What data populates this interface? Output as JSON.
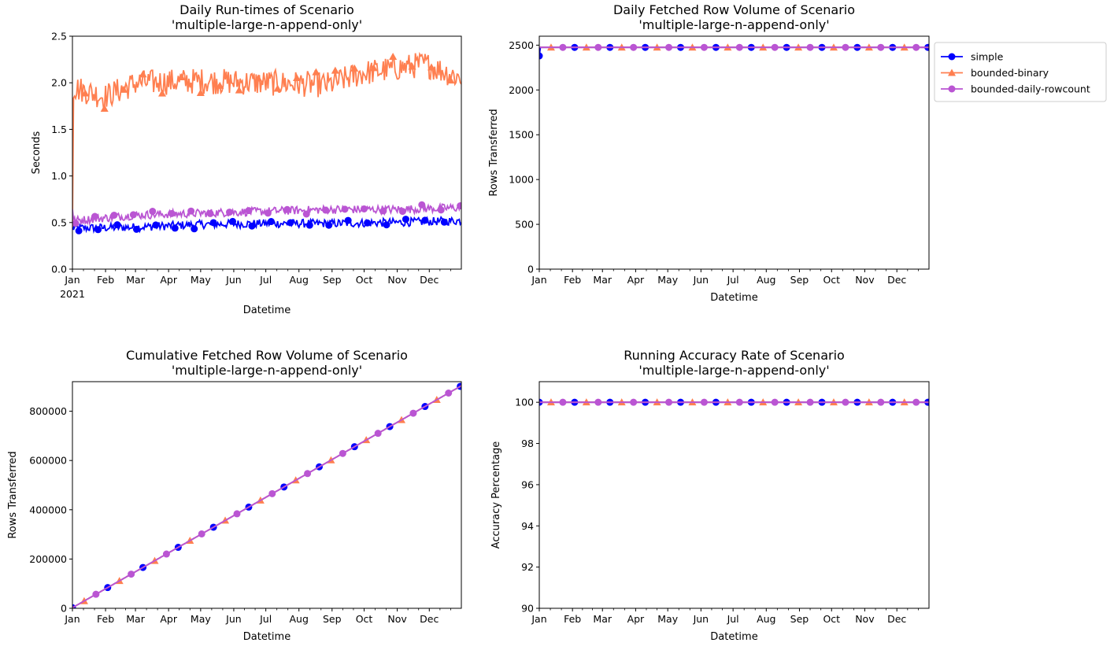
{
  "colors": {
    "simple": "#0000ff",
    "bounded_binary": "#ff7f50",
    "bounded_daily_rowcount": "#ba55d3"
  },
  "legend": {
    "placement": "upper-left-outside-right-of-top-right-plot",
    "entries": [
      "simple",
      "bounded-binary",
      "bounded-daily-rowcount"
    ]
  },
  "chart_data": [
    {
      "type": "line",
      "title": "Daily Run-times of Scenario\n'multiple-large-n-append-only'",
      "xlabel": "Datetime",
      "ylabel": "Seconds",
      "x_range": [
        "2021-01-01",
        "2021-12-31"
      ],
      "ylim": [
        0,
        2.5
      ],
      "yticks": [
        "0.0",
        "0.5",
        "1.0",
        "1.5",
        "2.0",
        "2.5"
      ],
      "xticks": [
        "Jan",
        "Feb",
        "Mar",
        "Apr",
        "May",
        "Jun",
        "Jul",
        "Aug",
        "Sep",
        "Oct",
        "Nov",
        "Dec"
      ],
      "x_year_label": "2021",
      "grid": false,
      "series": [
        {
          "name": "simple",
          "approx_level": [
            [
              1,
              0.44
            ],
            [
              60,
              0.45
            ],
            [
              120,
              0.48
            ],
            [
              180,
              0.49
            ],
            [
              240,
              0.49
            ],
            [
              300,
              0.5
            ],
            [
              364,
              0.52
            ]
          ],
          "marker": "circle"
        },
        {
          "name": "bounded-binary",
          "approx_level": [
            [
              1,
              1.95
            ],
            [
              30,
              1.85
            ],
            [
              60,
              2.0
            ],
            [
              120,
              2.02
            ],
            [
              180,
              2.0
            ],
            [
              240,
              1.98
            ],
            [
              270,
              2.1
            ],
            [
              300,
              2.15
            ],
            [
              330,
              2.2
            ],
            [
              364,
              2.05
            ]
          ],
          "marker": "triangle"
        },
        {
          "name": "bounded-daily-rowcount",
          "approx_level": [
            [
              1,
              0.52
            ],
            [
              60,
              0.58
            ],
            [
              120,
              0.6
            ],
            [
              180,
              0.62
            ],
            [
              240,
              0.64
            ],
            [
              300,
              0.64
            ],
            [
              364,
              0.66
            ]
          ],
          "marker": "circle"
        }
      ]
    },
    {
      "type": "line",
      "title": "Daily Fetched Row Volume of Scenario\n'multiple-large-n-append-only'",
      "xlabel": "Datetime",
      "ylabel": "Rows Transferred",
      "x_range": [
        "2021-01-01",
        "2021-12-31"
      ],
      "ylim": [
        0,
        2600
      ],
      "yticks": [
        "0",
        "500",
        "1000",
        "1500",
        "2000",
        "2500"
      ],
      "xticks": [
        "Jan",
        "Feb",
        "Mar",
        "Apr",
        "May",
        "Jun",
        "Jul",
        "Aug",
        "Sep",
        "Oct",
        "Nov",
        "Dec"
      ],
      "grid": false,
      "series": [
        {
          "name": "simple",
          "first_value": 2380,
          "value": 2475
        },
        {
          "name": "bounded-binary",
          "value": 2475
        },
        {
          "name": "bounded-daily-rowcount",
          "value": 2475
        }
      ]
    },
    {
      "type": "line",
      "title": "Cumulative Fetched Row Volume of Scenario\n'multiple-large-n-append-only'",
      "xlabel": "Datetime",
      "ylabel": "Rows Transferred",
      "x_range": [
        "2021-01-01",
        "2021-12-31"
      ],
      "ylim": [
        0,
        920000
      ],
      "yticks": [
        "0",
        "200000",
        "400000",
        "600000",
        "800000"
      ],
      "xticks": [
        "Jan",
        "Feb",
        "Mar",
        "Apr",
        "May",
        "Jun",
        "Jul",
        "Aug",
        "Sep",
        "Oct",
        "Nov",
        "Dec"
      ],
      "grid": false,
      "series": [
        {
          "name": "simple",
          "daily_increment": 2475
        },
        {
          "name": "bounded-binary",
          "daily_increment": 2475
        },
        {
          "name": "bounded-daily-rowcount",
          "daily_increment": 2475
        }
      ]
    },
    {
      "type": "line",
      "title": "Running Accuracy Rate of Scenario\n'multiple-large-n-append-only'",
      "xlabel": "Datetime",
      "ylabel": "Accuracy Percentage",
      "x_range": [
        "2021-01-01",
        "2021-12-31"
      ],
      "ylim": [
        90,
        101
      ],
      "yticks": [
        "90",
        "92",
        "94",
        "96",
        "98",
        "100"
      ],
      "xticks": [
        "Jan",
        "Feb",
        "Mar",
        "Apr",
        "May",
        "Jun",
        "Jul",
        "Aug",
        "Sep",
        "Oct",
        "Nov",
        "Dec"
      ],
      "grid": false,
      "series": [
        {
          "name": "simple",
          "value": 100
        },
        {
          "name": "bounded-binary",
          "value": 100
        },
        {
          "name": "bounded-daily-rowcount",
          "value": 100
        }
      ]
    }
  ]
}
